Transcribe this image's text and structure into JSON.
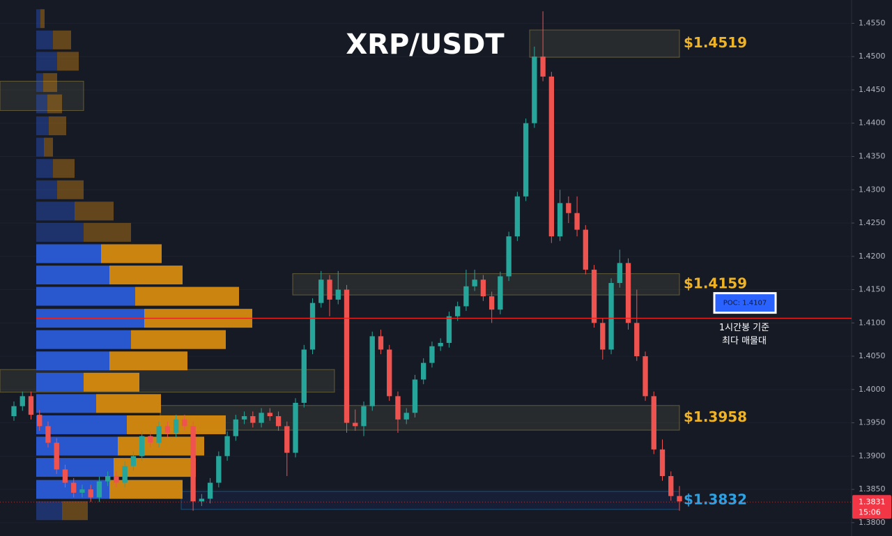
{
  "chart_data": {
    "type": "candlestick",
    "title": "XRP/USDT",
    "up_color": "#26a69a",
    "down_color": "#ef5350",
    "ylim": [
      1.378,
      1.4585
    ],
    "yticks": [
      {
        "value": 1.38,
        "label": "1.3800"
      },
      {
        "value": 1.385,
        "label": "1.3850"
      },
      {
        "value": 1.39,
        "label": "1.3900"
      },
      {
        "value": 1.395,
        "label": "1.3950"
      },
      {
        "value": 1.4,
        "label": "1.4000"
      },
      {
        "value": 1.405,
        "label": "1.4050"
      },
      {
        "value": 1.41,
        "label": "1.4100"
      },
      {
        "value": 1.415,
        "label": "1.4150"
      },
      {
        "value": 1.42,
        "label": "1.4200"
      },
      {
        "value": 1.425,
        "label": "1.4250"
      },
      {
        "value": 1.43,
        "label": "1.4300"
      },
      {
        "value": 1.435,
        "label": "1.4350"
      },
      {
        "value": 1.44,
        "label": "1.4400"
      },
      {
        "value": 1.445,
        "label": "1.4450"
      },
      {
        "value": 1.45,
        "label": "1.4500"
      },
      {
        "value": 1.455,
        "label": "1.4550"
      }
    ],
    "grid": true,
    "open": [
      1.396,
      1.3975,
      1.399,
      1.3962,
      1.3945,
      1.392,
      1.388,
      1.386,
      1.3845,
      1.385,
      1.3838,
      1.3862,
      1.387,
      1.386,
      1.3885,
      1.39,
      1.393,
      1.392,
      1.3945,
      1.3935,
      1.3955,
      1.3945,
      1.3832,
      1.3836,
      1.386,
      1.39,
      1.393,
      1.3955,
      1.396,
      1.395,
      1.3965,
      1.396,
      1.3945,
      1.3905,
      1.398,
      1.406,
      1.413,
      1.4165,
      1.4135,
      1.415,
      1.395,
      1.3945,
      1.3975,
      1.408,
      1.406,
      1.399,
      1.3955,
      1.3965,
      1.4015,
      1.404,
      1.4065,
      1.407,
      1.411,
      1.4125,
      1.4155,
      1.4165,
      1.414,
      1.412,
      1.417,
      1.423,
      1.429,
      1.44,
      1.45,
      1.447,
      1.423,
      1.428,
      1.4265,
      1.424,
      1.418,
      1.41,
      1.406,
      1.416,
      1.419,
      1.41,
      1.405,
      1.399,
      1.391,
      1.387,
      1.384
    ],
    "high": [
      1.3982,
      1.3997,
      1.3997,
      1.3969,
      1.3952,
      1.3927,
      1.3887,
      1.3867,
      1.3857,
      1.3857,
      1.3869,
      1.3877,
      1.3877,
      1.3892,
      1.3907,
      1.3937,
      1.3937,
      1.3952,
      1.3952,
      1.3962,
      1.3962,
      1.3952,
      1.3843,
      1.3867,
      1.3907,
      1.3937,
      1.3962,
      1.3967,
      1.3967,
      1.3972,
      1.3972,
      1.3967,
      1.3952,
      1.3987,
      1.4067,
      1.4137,
      1.4178,
      1.4172,
      1.4178,
      1.4157,
      1.397,
      1.3982,
      1.4087,
      1.409,
      1.4067,
      1.3997,
      1.3972,
      1.4022,
      1.4047,
      1.4072,
      1.4077,
      1.4117,
      1.4132,
      1.418,
      1.418,
      1.4172,
      1.4147,
      1.4177,
      1.4237,
      1.4297,
      1.4407,
      1.4515,
      1.4568,
      1.4477,
      1.43,
      1.429,
      1.429,
      1.4247,
      1.4187,
      1.4107,
      1.4167,
      1.421,
      1.4197,
      1.415,
      1.4057,
      1.3997,
      1.3925,
      1.3877,
      1.3855
    ],
    "low": [
      1.3953,
      1.3968,
      1.3955,
      1.3938,
      1.3913,
      1.3873,
      1.3853,
      1.3838,
      1.3838,
      1.3831,
      1.3831,
      1.3855,
      1.3853,
      1.3853,
      1.3878,
      1.3893,
      1.3913,
      1.3913,
      1.3928,
      1.3928,
      1.3938,
      1.3818,
      1.3825,
      1.3829,
      1.3853,
      1.3893,
      1.3923,
      1.3948,
      1.3943,
      1.3943,
      1.3953,
      1.3938,
      1.387,
      1.3898,
      1.3973,
      1.4053,
      1.4123,
      1.411,
      1.4128,
      1.3935,
      1.3938,
      1.393,
      1.3968,
      1.4053,
      1.3983,
      1.3935,
      1.3948,
      1.3958,
      1.4008,
      1.4033,
      1.4058,
      1.4063,
      1.4103,
      1.4118,
      1.4148,
      1.4133,
      1.41,
      1.4113,
      1.4163,
      1.4223,
      1.4283,
      1.4393,
      1.4463,
      1.422,
      1.4223,
      1.425,
      1.423,
      1.4173,
      1.4093,
      1.4045,
      1.4053,
      1.4153,
      1.409,
      1.4043,
      1.3983,
      1.3903,
      1.3863,
      1.3833,
      1.3818
    ],
    "close": [
      1.3975,
      1.399,
      1.3962,
      1.3945,
      1.392,
      1.388,
      1.386,
      1.3845,
      1.385,
      1.3838,
      1.3862,
      1.387,
      1.386,
      1.3885,
      1.39,
      1.393,
      1.392,
      1.3945,
      1.3935,
      1.3955,
      1.3945,
      1.3832,
      1.3836,
      1.386,
      1.39,
      1.393,
      1.3955,
      1.396,
      1.395,
      1.3965,
      1.396,
      1.3945,
      1.3905,
      1.398,
      1.406,
      1.413,
      1.4165,
      1.4135,
      1.415,
      1.395,
      1.3945,
      1.3975,
      1.408,
      1.406,
      1.399,
      1.3955,
      1.3965,
      1.4015,
      1.404,
      1.4065,
      1.407,
      1.411,
      1.4125,
      1.4155,
      1.4165,
      1.414,
      1.412,
      1.417,
      1.423,
      1.429,
      1.44,
      1.45,
      1.447,
      1.423,
      1.428,
      1.4265,
      1.424,
      1.418,
      1.41,
      1.406,
      1.416,
      1.419,
      1.41,
      1.405,
      1.399,
      1.391,
      1.387,
      1.384,
      1.3832
    ],
    "volume_profile": {
      "prices": [
        1.4557,
        1.4525,
        1.4493,
        1.4461,
        1.4429,
        1.4396,
        1.4364,
        1.4332,
        1.43,
        1.4268,
        1.4236,
        1.4204,
        1.4172,
        1.414,
        1.4107,
        1.4075,
        1.4043,
        1.4011,
        1.3979,
        1.3947,
        1.3915,
        1.3883,
        1.385,
        1.3818
      ],
      "value_area_low": 1.385,
      "value_area_high": 1.4204,
      "series": [
        {
          "name": "buy",
          "color": "#2a5bd7",
          "values": [
            6,
            24,
            30,
            10,
            16,
            18,
            11,
            24,
            30,
            55,
            68,
            93,
            105,
            142,
            155,
            136,
            105,
            68,
            86,
            130,
            117,
            111,
            105,
            37
          ]
        },
        {
          "name": "sell",
          "color": "#d68a0f",
          "values": [
            6,
            26,
            31,
            20,
            21,
            25,
            13,
            31,
            38,
            56,
            68,
            87,
            105,
            149,
            155,
            136,
            112,
            80,
            93,
            142,
            124,
            118,
            105,
            37
          ]
        }
      ]
    },
    "zones": [
      {
        "label": "$1.4519",
        "top": 1.454,
        "bottom": 1.4499,
        "color": "#f0b323"
      },
      {
        "label": "$1.4159",
        "top": 1.4174,
        "bottom": 1.4142,
        "color": "#f0b323"
      },
      {
        "label": "$1.3958",
        "top": 1.3976,
        "bottom": 1.3939,
        "color": "#f0b323"
      },
      {
        "label": "$1.3832",
        "top": 1.3847,
        "bottom": 1.382,
        "color": "#29a3e6"
      },
      {
        "top": 1.4463,
        "bottom": 1.4419
      },
      {
        "top": 1.403,
        "bottom": 1.3996
      }
    ],
    "poc": 1.4107,
    "poc_label": "POC: 1.4107",
    "poc_note": [
      "1시간봉 기준",
      "최다 매물대"
    ],
    "last_price": 1.3831,
    "countdown": "15:06"
  }
}
